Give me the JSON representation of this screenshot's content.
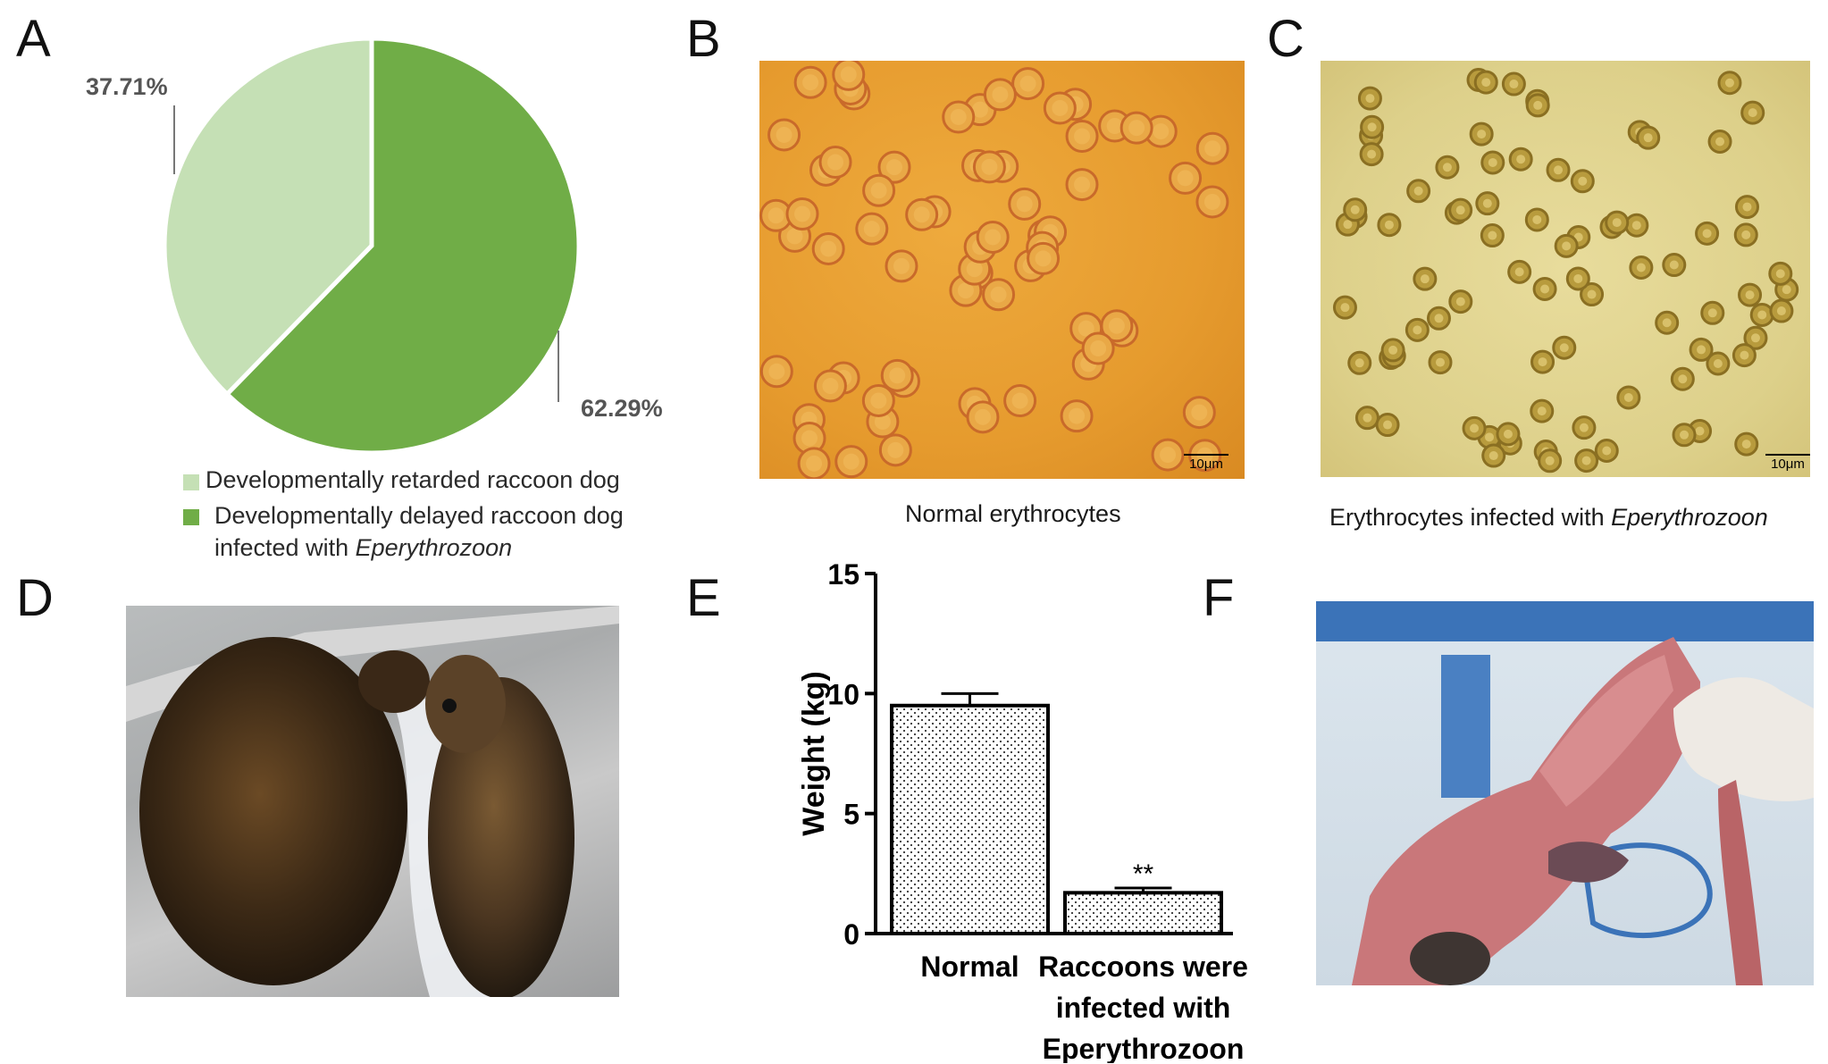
{
  "panels": {
    "A": "A",
    "B": "B",
    "C": "C",
    "D": "D",
    "E": "E",
    "F": "F"
  },
  "pie": {
    "label_small": "37.71%",
    "label_large": "62.29%",
    "legend": [
      {
        "text": "Developmentally retarded raccoon dog",
        "color": "#c5e0b5"
      },
      {
        "text_line1": "Developmentally delayed raccoon dog",
        "text_line2_prefix": "infected with ",
        "text_line2_italic": "Eperythrozoon",
        "color": "#70ad47"
      }
    ]
  },
  "micrographs": {
    "b_caption": "Normal erythrocytes",
    "c_caption_prefix": "Erythrocytes infected with ",
    "c_caption_italic": "Eperythrozoon",
    "scale_label": "10μm"
  },
  "chart_data": [
    {
      "type": "pie",
      "categories": [
        "Developmentally retarded raccoon dog",
        "Developmentally delayed raccoon dog infected with Eperythrozoon"
      ],
      "values": [
        37.71,
        62.29
      ],
      "colors": [
        "#c5e0b5",
        "#70ad47"
      ]
    },
    {
      "type": "bar",
      "categories": [
        "Normal",
        "Raccoons were infected with Eperythrozoon"
      ],
      "values": [
        9.5,
        1.7
      ],
      "errors": [
        0.5,
        0.2
      ],
      "significance": [
        "",
        "**"
      ],
      "ylabel": "Weight (kg)",
      "ylim": [
        0,
        15
      ],
      "yticks": [
        "0",
        "5",
        "10",
        "15"
      ],
      "xlabels": [
        [
          "Normal"
        ],
        [
          "Raccoons were",
          "infected with",
          "Eperythrozoon"
        ]
      ]
    }
  ]
}
